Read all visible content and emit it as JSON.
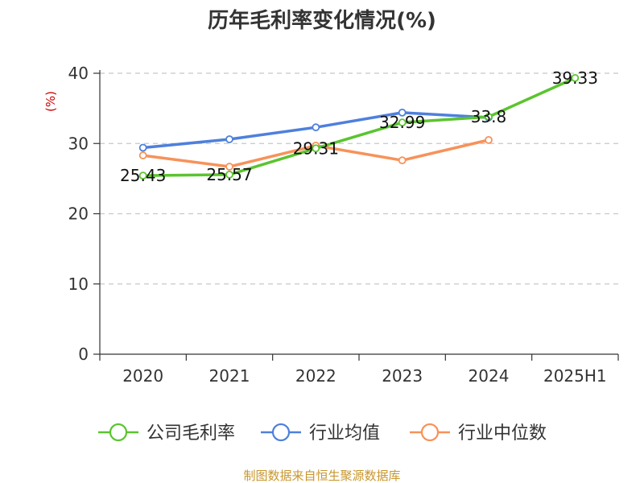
{
  "chart_data": {
    "type": "line",
    "title": "历年毛利率变化情况(%)",
    "ylabel": "(%)",
    "ylabel_color": "#cc0000",
    "categories": [
      "2020",
      "2021",
      "2022",
      "2023",
      "2024",
      "2025H1"
    ],
    "ylim": [
      0,
      40
    ],
    "yticks": [
      0,
      10,
      20,
      30,
      40
    ],
    "grid": true,
    "legend_position": "bottom",
    "series": [
      {
        "name": "公司毛利率",
        "color": "#5bc42f",
        "values": [
          25.43,
          25.57,
          29.31,
          32.99,
          33.8,
          39.33
        ],
        "labels": [
          "25.43",
          "25.57",
          "29.31",
          "32.99",
          "33.8",
          "39.33"
        ]
      },
      {
        "name": "行业均值",
        "color": "#4e80dc",
        "values": [
          29.4,
          30.6,
          32.3,
          34.4,
          33.7,
          null
        ]
      },
      {
        "name": "行业中位数",
        "color": "#f7925a",
        "values": [
          28.3,
          26.7,
          29.7,
          27.6,
          30.5,
          null
        ]
      }
    ]
  },
  "source_text": "制图数据来自恒生聚源数据库",
  "source_color": "#c8962d"
}
